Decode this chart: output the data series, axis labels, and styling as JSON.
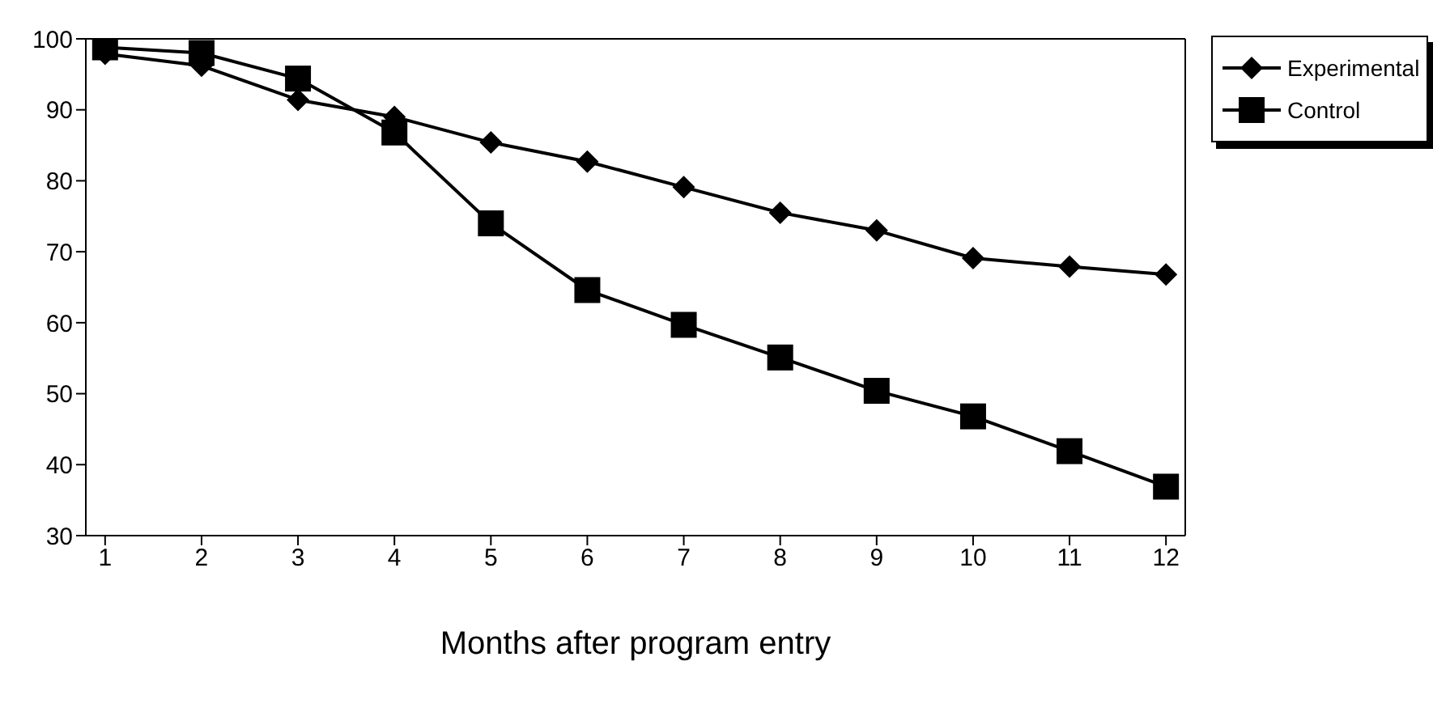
{
  "chart_data": {
    "type": "line",
    "xlabel": "Months after program entry",
    "x": [
      1,
      2,
      3,
      4,
      5,
      6,
      7,
      8,
      9,
      10,
      11,
      12
    ],
    "series": [
      {
        "name": "Experimental",
        "color": "#000000",
        "marker": "diamond",
        "values": [
          97.9,
          96.2,
          91.4,
          89,
          85.4,
          82.7,
          79.1,
          75.5,
          73,
          69.1,
          67.9,
          66.8
        ]
      },
      {
        "name": "Control",
        "color": "#000000",
        "marker": "square",
        "values": [
          98.8,
          98,
          94.4,
          86.8,
          74,
          64.6,
          59.7,
          55.1,
          50.4,
          46.8,
          41.9,
          36.9
        ]
      }
    ],
    "xlim": [
      0.8,
      12.2
    ],
    "xticks": [
      1,
      2,
      3,
      4,
      5,
      6,
      7,
      8,
      9,
      10,
      11,
      12
    ],
    "ylim": [
      30,
      100
    ],
    "yticks": [
      30,
      40,
      50,
      60,
      70,
      80,
      90,
      100
    ],
    "grid": false,
    "legend": "top right",
    "line_style": "solid"
  }
}
